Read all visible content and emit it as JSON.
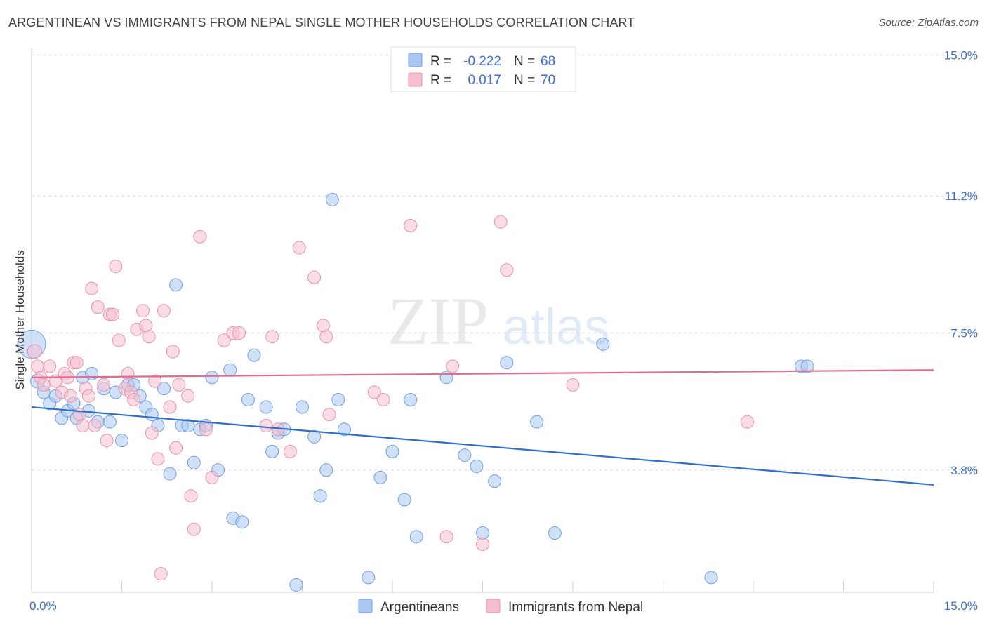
{
  "header": {
    "title": "ARGENTINEAN VS IMMIGRANTS FROM NEPAL SINGLE MOTHER HOUSEHOLDS CORRELATION CHART",
    "source": "Source: ZipAtlas.com"
  },
  "watermark": {
    "zip": "ZIP",
    "atlas": "atlas"
  },
  "stats_legend": {
    "rows": [
      {
        "r_label": "R =",
        "r_value": "-0.222",
        "n_label": "N =",
        "n_value": "68"
      },
      {
        "r_label": "R =",
        "r_value": "0.017",
        "n_label": "N =",
        "n_value": "70"
      }
    ]
  },
  "chart_data": {
    "type": "scatter",
    "ylabel": "Single Mother Households",
    "xlim": [
      0,
      15
    ],
    "ylim": [
      0.5,
      15.2
    ],
    "x_tick_labels": [
      "0.0%",
      "15.0%"
    ],
    "y_ticks": [
      {
        "value": 3.8,
        "label": "3.8%"
      },
      {
        "value": 7.5,
        "label": "7.5%"
      },
      {
        "value": 11.2,
        "label": "11.2%"
      },
      {
        "value": 15.0,
        "label": "15.0%"
      }
    ],
    "grid": "horizontal dashed",
    "colors": {
      "Argentineans": {
        "fill": "#a9c7f0",
        "stroke": "#6f9ee0",
        "line": "#2f6fcc"
      },
      "Immigrants from Nepal": {
        "fill": "#f6bfd0",
        "stroke": "#ea90ad",
        "line": "#e06c92"
      }
    },
    "series": [
      {
        "name": "Argentineans",
        "trend": {
          "x": [
            0,
            15
          ],
          "y": [
            5.5,
            3.4
          ]
        },
        "points": [
          [
            0.0,
            7.2,
            20
          ],
          [
            0.1,
            6.2,
            10
          ],
          [
            0.2,
            5.9,
            9
          ],
          [
            0.3,
            5.6,
            9
          ],
          [
            0.4,
            5.8,
            9
          ],
          [
            0.5,
            5.2,
            9
          ],
          [
            0.6,
            5.4,
            9
          ],
          [
            0.7,
            5.6,
            9
          ],
          [
            0.75,
            5.2,
            9
          ],
          [
            0.85,
            6.3,
            9
          ],
          [
            0.95,
            5.4,
            9
          ],
          [
            1.0,
            6.4,
            9
          ],
          [
            1.1,
            5.1,
            9
          ],
          [
            1.2,
            6.0,
            9
          ],
          [
            1.3,
            5.1,
            9
          ],
          [
            1.4,
            5.9,
            9
          ],
          [
            1.5,
            4.6,
            9
          ],
          [
            1.6,
            6.1,
            9
          ],
          [
            1.7,
            6.1,
            9
          ],
          [
            1.8,
            5.8,
            9
          ],
          [
            1.9,
            5.5,
            9
          ],
          [
            2.0,
            5.3,
            9
          ],
          [
            2.1,
            5.0,
            9
          ],
          [
            2.2,
            6.0,
            9
          ],
          [
            2.3,
            3.7,
            9
          ],
          [
            2.4,
            8.8,
            9
          ],
          [
            2.5,
            5.0,
            9
          ],
          [
            2.6,
            5.0,
            9
          ],
          [
            2.7,
            4.0,
            9
          ],
          [
            2.8,
            4.9,
            9
          ],
          [
            2.9,
            5.0,
            9
          ],
          [
            3.0,
            6.3,
            9
          ],
          [
            3.1,
            3.8,
            9
          ],
          [
            3.3,
            6.5,
            9
          ],
          [
            3.35,
            2.5,
            9
          ],
          [
            3.5,
            2.4,
            9
          ],
          [
            3.6,
            5.7,
            9
          ],
          [
            3.7,
            6.9,
            9
          ],
          [
            3.9,
            5.5,
            9
          ],
          [
            4.0,
            4.3,
            9
          ],
          [
            4.1,
            4.8,
            9
          ],
          [
            4.2,
            4.9,
            9
          ],
          [
            4.4,
            0.7,
            9
          ],
          [
            4.5,
            5.5,
            9
          ],
          [
            4.7,
            4.7,
            9
          ],
          [
            4.8,
            3.1,
            9
          ],
          [
            4.9,
            3.8,
            9
          ],
          [
            5.0,
            11.1,
            9
          ],
          [
            5.1,
            5.7,
            9
          ],
          [
            5.2,
            4.9,
            9
          ],
          [
            5.6,
            0.9,
            9
          ],
          [
            5.8,
            3.6,
            9
          ],
          [
            6.0,
            4.3,
            9
          ],
          [
            6.2,
            3.0,
            9
          ],
          [
            6.3,
            5.7,
            9
          ],
          [
            6.4,
            2.0,
            9
          ],
          [
            6.9,
            6.3,
            9
          ],
          [
            7.2,
            4.2,
            9
          ],
          [
            7.4,
            3.9,
            9
          ],
          [
            7.5,
            2.1,
            9
          ],
          [
            7.7,
            3.5,
            9
          ],
          [
            7.9,
            6.7,
            9
          ],
          [
            8.4,
            5.1,
            9
          ],
          [
            8.7,
            2.1,
            9
          ],
          [
            9.5,
            7.2,
            9
          ],
          [
            11.3,
            0.9,
            9
          ],
          [
            12.8,
            6.6,
            9
          ],
          [
            12.9,
            6.6,
            9
          ]
        ]
      },
      {
        "name": "Immigrants from Nepal",
        "trend": {
          "x": [
            0,
            15
          ],
          "y": [
            6.3,
            6.5
          ]
        },
        "points": [
          [
            0.05,
            7.0,
            10
          ],
          [
            0.1,
            6.6,
            9
          ],
          [
            0.15,
            6.3,
            9
          ],
          [
            0.2,
            6.1,
            9
          ],
          [
            0.3,
            6.6,
            9
          ],
          [
            0.4,
            6.2,
            9
          ],
          [
            0.5,
            5.9,
            9
          ],
          [
            0.55,
            6.4,
            9
          ],
          [
            0.6,
            6.3,
            9
          ],
          [
            0.65,
            5.8,
            9
          ],
          [
            0.7,
            6.7,
            9
          ],
          [
            0.75,
            6.7,
            9
          ],
          [
            0.8,
            5.3,
            9
          ],
          [
            0.85,
            5.0,
            9
          ],
          [
            0.9,
            6.0,
            9
          ],
          [
            0.95,
            5.8,
            9
          ],
          [
            1.0,
            8.7,
            9
          ],
          [
            1.05,
            5.0,
            9
          ],
          [
            1.1,
            8.2,
            9
          ],
          [
            1.2,
            6.1,
            9
          ],
          [
            1.25,
            4.6,
            9
          ],
          [
            1.3,
            8.0,
            9
          ],
          [
            1.35,
            8.0,
            9
          ],
          [
            1.4,
            9.3,
            9
          ],
          [
            1.45,
            7.3,
            9
          ],
          [
            1.55,
            6.0,
            9
          ],
          [
            1.6,
            6.4,
            9
          ],
          [
            1.65,
            5.9,
            9
          ],
          [
            1.7,
            5.7,
            9
          ],
          [
            1.75,
            7.6,
            9
          ],
          [
            1.85,
            8.1,
            9
          ],
          [
            1.9,
            7.7,
            9
          ],
          [
            1.95,
            7.4,
            9
          ],
          [
            2.0,
            4.8,
            9
          ],
          [
            2.05,
            6.2,
            9
          ],
          [
            2.1,
            4.1,
            9
          ],
          [
            2.15,
            1.0,
            9
          ],
          [
            2.2,
            8.1,
            9
          ],
          [
            2.3,
            5.5,
            9
          ],
          [
            2.35,
            7.0,
            9
          ],
          [
            2.4,
            4.4,
            9
          ],
          [
            2.45,
            6.1,
            9
          ],
          [
            2.6,
            5.8,
            9
          ],
          [
            2.65,
            3.1,
            9
          ],
          [
            2.7,
            2.2,
            9
          ],
          [
            2.8,
            10.1,
            9
          ],
          [
            2.9,
            4.9,
            9
          ],
          [
            3.0,
            3.6,
            9
          ],
          [
            3.2,
            7.3,
            9
          ],
          [
            3.35,
            7.5,
            9
          ],
          [
            3.45,
            7.5,
            9
          ],
          [
            3.9,
            5.0,
            9
          ],
          [
            4.0,
            7.4,
            9
          ],
          [
            4.1,
            4.9,
            9
          ],
          [
            4.3,
            4.3,
            9
          ],
          [
            4.45,
            9.8,
            9
          ],
          [
            4.7,
            9.0,
            9
          ],
          [
            4.85,
            7.7,
            9
          ],
          [
            4.9,
            7.4,
            9
          ],
          [
            4.95,
            5.3,
            9
          ],
          [
            5.7,
            5.9,
            9
          ],
          [
            5.85,
            5.7,
            9
          ],
          [
            6.3,
            10.4,
            9
          ],
          [
            6.9,
            2.0,
            9
          ],
          [
            7.0,
            6.6,
            9
          ],
          [
            7.5,
            1.8,
            9
          ],
          [
            7.8,
            10.5,
            9
          ],
          [
            7.9,
            9.2,
            9
          ],
          [
            9.0,
            6.1,
            9
          ],
          [
            11.9,
            5.1,
            9
          ]
        ]
      }
    ]
  }
}
